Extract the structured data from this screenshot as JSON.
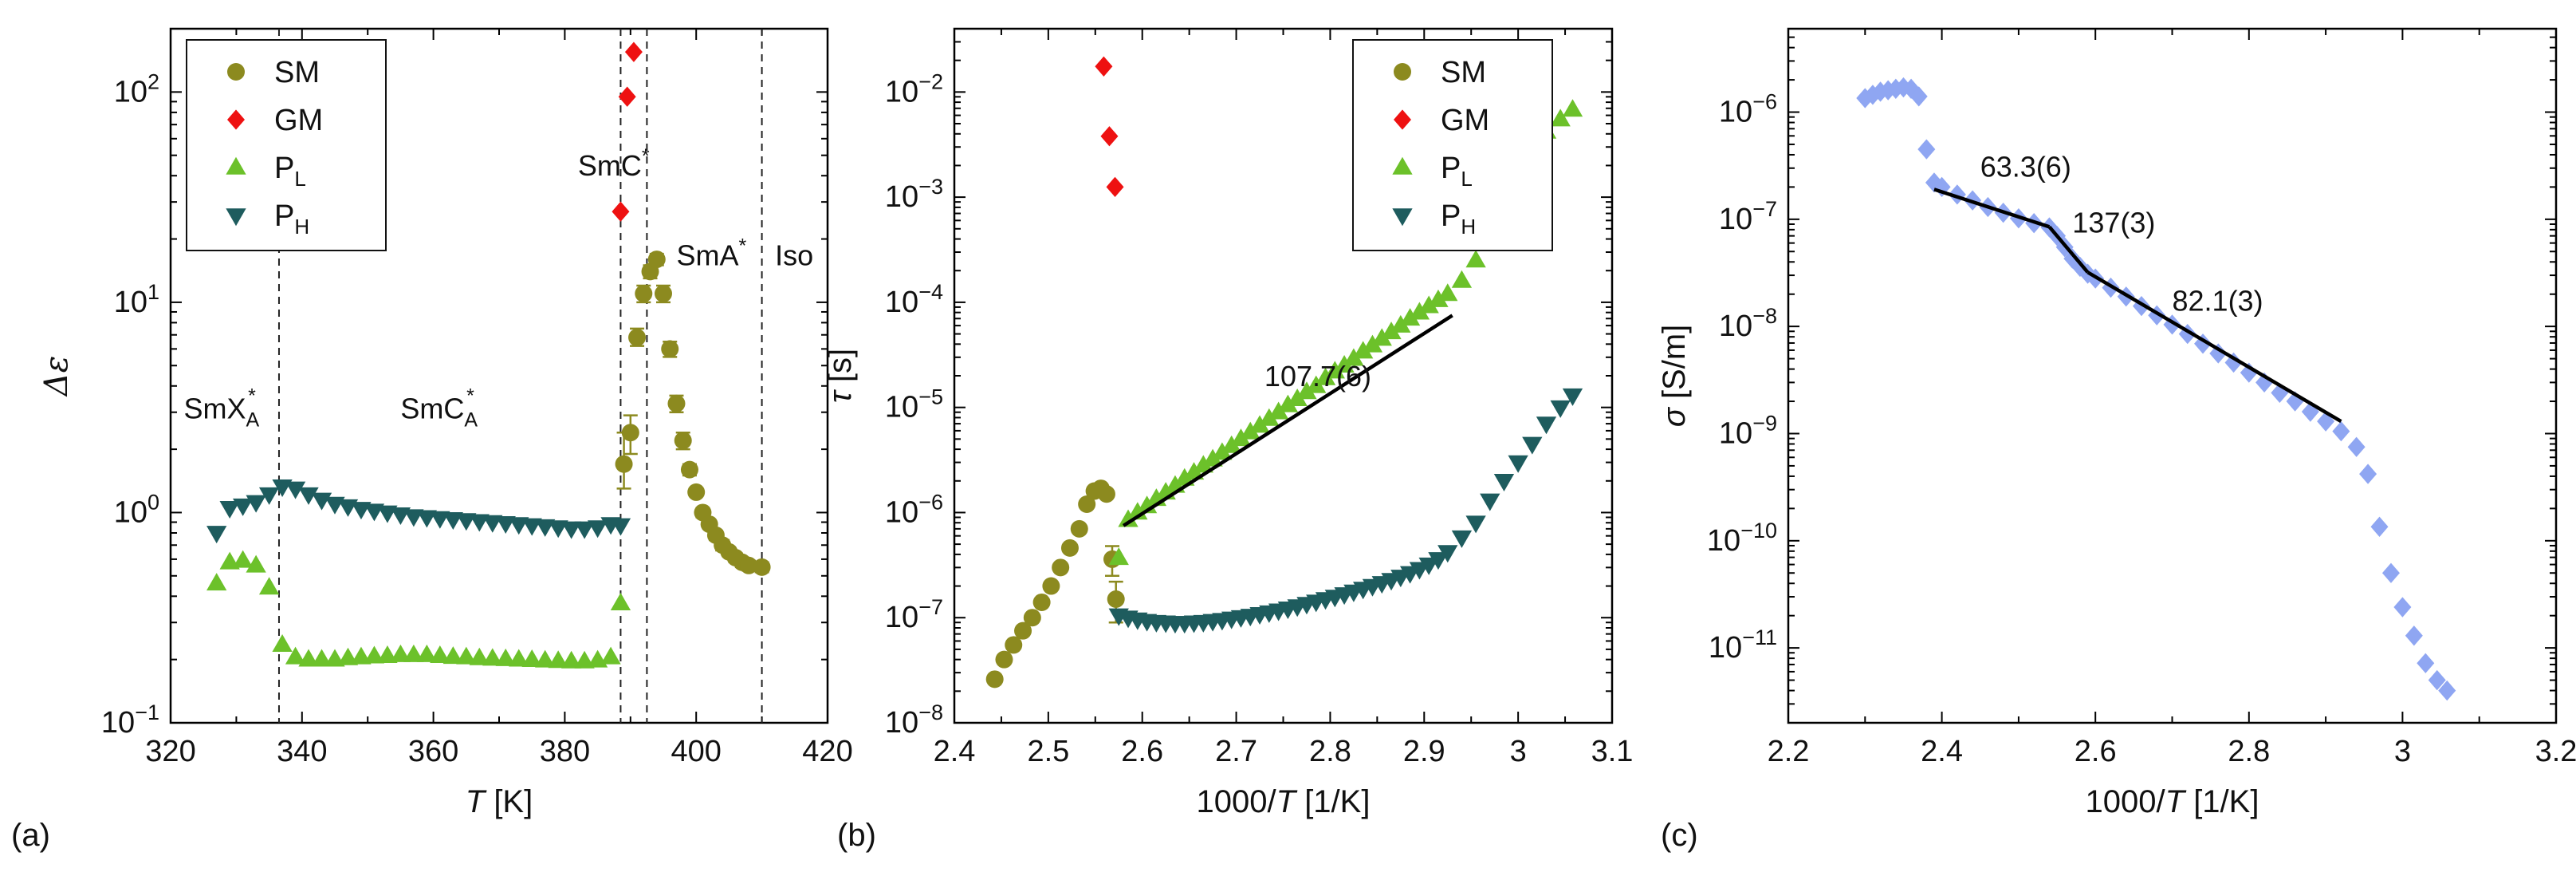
{
  "colors": {
    "SM": "#8c8a1f",
    "GM": "#ee1111",
    "PL": "#6cc12a",
    "PH": "#1e5c5e",
    "sigma": "#8fa6f2",
    "fit": "#000000"
  },
  "chart_data": [
    {
      "type": "scatter",
      "panel_label": "(a)",
      "xlabel_var": "T",
      "xlabel_unit": " [K]",
      "ylabel": "Δε",
      "xlim": [
        320,
        420
      ],
      "ylim": [
        0.1,
        200
      ],
      "yscale": "log",
      "xticks": [
        320,
        340,
        360,
        380,
        400,
        420
      ],
      "yticks": [
        {
          "v": 0.1,
          "base": "10",
          "exp": "−1"
        },
        {
          "v": 1,
          "base": "10",
          "exp": "0"
        },
        {
          "v": 10,
          "base": "10",
          "exp": "1"
        },
        {
          "v": 100,
          "base": "10",
          "exp": "2"
        }
      ],
      "legend": {
        "placement": "top-left",
        "entries": [
          {
            "key": "SM",
            "main": "SM",
            "sub": "",
            "marker": "circle"
          },
          {
            "key": "GM",
            "main": "GM",
            "sub": "",
            "marker": "diamond"
          },
          {
            "key": "PL",
            "main": "P",
            "sub": "L",
            "marker": "triangle-up"
          },
          {
            "key": "PH",
            "main": "P",
            "sub": "H",
            "marker": "triangle-down"
          }
        ]
      },
      "vlines": [
        336.5,
        388.5,
        392.5,
        410
      ],
      "annotations": [
        {
          "main": "SmX",
          "sub": "A",
          "sup": "*",
          "x": 322,
          "y": 2.8
        },
        {
          "main": "SmC",
          "sub": "A",
          "sup": "*",
          "x": 355,
          "y": 2.8
        },
        {
          "main": "SmC",
          "sub": "",
          "sup": "*",
          "x": 382,
          "y": 40
        },
        {
          "main": "SmA",
          "sub": "",
          "sup": "*",
          "x": 397,
          "y": 15
        },
        {
          "main": "Iso",
          "sub": "",
          "sup": "",
          "x": 412,
          "y": 15
        }
      ],
      "series": [
        {
          "key": "SM",
          "marker": "circle",
          "errorbars": true,
          "x": [
            389,
            390,
            391,
            392,
            393,
            394,
            395,
            396,
            397,
            398,
            399,
            400,
            401,
            402,
            403,
            404,
            405,
            406,
            407,
            408,
            410
          ],
          "y": [
            1.7,
            2.4,
            6.8,
            11,
            14,
            16,
            11,
            6,
            3.3,
            2.2,
            1.6,
            1.25,
            1.0,
            0.88,
            0.78,
            0.7,
            0.65,
            0.61,
            0.58,
            0.56,
            0.55
          ],
          "yerr_hi": [
            2.4,
            2.9,
            7.5,
            12,
            15,
            17,
            12,
            6.5,
            3.6,
            2.4,
            1.7,
            1.3,
            1.05,
            0.92,
            0.82,
            0.74,
            0.68,
            0.64,
            0.61,
            0.59,
            0.58
          ],
          "yerr_lo": [
            1.3,
            1.9,
            6.2,
            10,
            13,
            15,
            10,
            5.5,
            3.0,
            2.0,
            1.5,
            1.2,
            0.95,
            0.84,
            0.74,
            0.66,
            0.62,
            0.58,
            0.55,
            0.53,
            0.52
          ]
        },
        {
          "key": "GM",
          "marker": "diamond",
          "errorbars": false,
          "x": [
            388.5,
            389.5,
            390.5
          ],
          "y": [
            27,
            95,
            155
          ]
        },
        {
          "key": "PL",
          "marker": "triangle-up",
          "errorbars": false,
          "x": [
            327,
            329,
            331,
            333,
            335,
            337,
            339,
            341,
            343,
            345,
            347,
            349,
            351,
            353,
            355,
            357,
            359,
            361,
            363,
            365,
            367,
            369,
            371,
            373,
            375,
            377,
            379,
            381,
            383,
            385,
            387,
            388.5
          ],
          "y": [
            0.46,
            0.58,
            0.59,
            0.56,
            0.44,
            0.235,
            0.205,
            0.2,
            0.2,
            0.2,
            0.203,
            0.205,
            0.207,
            0.208,
            0.21,
            0.21,
            0.21,
            0.208,
            0.206,
            0.205,
            0.203,
            0.202,
            0.201,
            0.2,
            0.199,
            0.198,
            0.197,
            0.196,
            0.196,
            0.198,
            0.205,
            0.37
          ]
        },
        {
          "key": "PH",
          "marker": "triangle-down",
          "errorbars": false,
          "x": [
            327,
            329,
            331,
            333,
            335,
            337,
            339,
            341,
            343,
            345,
            347,
            349,
            351,
            353,
            355,
            357,
            359,
            361,
            363,
            365,
            367,
            369,
            371,
            373,
            375,
            377,
            379,
            381,
            383,
            385,
            387,
            388.5
          ],
          "y": [
            0.8,
            1.05,
            1.08,
            1.12,
            1.22,
            1.33,
            1.3,
            1.22,
            1.15,
            1.1,
            1.07,
            1.04,
            1.02,
            1.0,
            0.98,
            0.96,
            0.95,
            0.94,
            0.93,
            0.92,
            0.91,
            0.9,
            0.89,
            0.88,
            0.87,
            0.86,
            0.85,
            0.84,
            0.84,
            0.85,
            0.88,
            0.87
          ]
        }
      ]
    },
    {
      "type": "scatter",
      "panel_label": "(b)",
      "xlabel_pre": "1000/",
      "xlabel_var": "T",
      "xlabel_unit": " [1/K]",
      "ylabel_var": "τ",
      "ylabel_unit": " [s]",
      "xlim": [
        2.4,
        3.1
      ],
      "ylim": [
        1e-08,
        0.04
      ],
      "yscale": "log",
      "xticks": [
        2.4,
        2.5,
        2.6,
        2.7,
        2.8,
        2.9,
        3.0,
        3.1
      ],
      "xtick_labels": [
        "2.4",
        "2.5",
        "2.6",
        "2.7",
        "2.8",
        "2.9",
        "3",
        "3.1"
      ],
      "yticks": [
        {
          "v": 1e-08,
          "base": "10",
          "exp": "−8"
        },
        {
          "v": 1e-07,
          "base": "10",
          "exp": "−7"
        },
        {
          "v": 1e-06,
          "base": "10",
          "exp": "−6"
        },
        {
          "v": 1e-05,
          "base": "10",
          "exp": "−5"
        },
        {
          "v": 0.0001,
          "base": "10",
          "exp": "−4"
        },
        {
          "v": 0.001,
          "base": "10",
          "exp": "−3"
        },
        {
          "v": 0.01,
          "base": "10",
          "exp": "−2"
        }
      ],
      "legend": {
        "placement": "top-right",
        "entries": [
          {
            "key": "SM",
            "main": "SM",
            "sub": "",
            "marker": "circle"
          },
          {
            "key": "GM",
            "main": "GM",
            "sub": "",
            "marker": "diamond"
          },
          {
            "key": "PL",
            "main": "P",
            "sub": "L",
            "marker": "triangle-up"
          },
          {
            "key": "PH",
            "main": "P",
            "sub": "H",
            "marker": "triangle-down"
          }
        ]
      },
      "fit_lines": [
        {
          "x": [
            2.58,
            2.93
          ],
          "y": [
            7.5e-07,
            7.5e-05
          ]
        }
      ],
      "annotations": [
        {
          "main": "107.7(6)",
          "sub": "",
          "sup": "",
          "x": 2.73,
          "y": 1.6e-05
        }
      ],
      "series": [
        {
          "key": "SM",
          "marker": "circle",
          "errorbars": true,
          "x": [
            2.443,
            2.453,
            2.463,
            2.473,
            2.483,
            2.493,
            2.503,
            2.513,
            2.523,
            2.533,
            2.541,
            2.549,
            2.556,
            2.562,
            2.568,
            2.572
          ],
          "y": [
            2.6e-08,
            4e-08,
            5.5e-08,
            7.5e-08,
            1e-07,
            1.4e-07,
            2e-07,
            3e-07,
            4.6e-07,
            7e-07,
            1.2e-06,
            1.6e-06,
            1.7e-06,
            1.5e-06,
            3.6e-07,
            1.5e-07
          ],
          "yerr_hi": [
            null,
            null,
            null,
            null,
            null,
            null,
            null,
            null,
            null,
            null,
            null,
            null,
            null,
            null,
            4.8e-07,
            2.2e-07
          ],
          "yerr_lo": [
            null,
            null,
            null,
            null,
            null,
            null,
            null,
            null,
            null,
            null,
            null,
            null,
            null,
            null,
            2.5e-07,
            9e-08
          ]
        },
        {
          "key": "GM",
          "marker": "diamond",
          "errorbars": false,
          "x": [
            2.559,
            2.565,
            2.571
          ],
          "y": [
            0.0175,
            0.0038,
            0.00125
          ]
        },
        {
          "key": "PL",
          "marker": "triangle-up",
          "errorbars": false,
          "x": [
            2.575,
            2.585,
            2.595,
            2.605,
            2.615,
            2.625,
            2.635,
            2.645,
            2.655,
            2.665,
            2.675,
            2.685,
            2.695,
            2.705,
            2.715,
            2.725,
            2.735,
            2.745,
            2.755,
            2.765,
            2.775,
            2.785,
            2.795,
            2.805,
            2.815,
            2.825,
            2.835,
            2.845,
            2.855,
            2.865,
            2.875,
            2.885,
            2.895,
            2.905,
            2.915,
            2.925,
            2.94,
            2.955,
            2.97,
            2.985,
            3.0,
            3.015,
            3.03,
            3.045,
            3.058
          ],
          "y": [
            3.7e-07,
            8.5e-07,
            1e-06,
            1.15e-06,
            1.35e-06,
            1.55e-06,
            1.8e-06,
            2.1e-06,
            2.4e-06,
            2.8e-06,
            3.2e-06,
            3.7e-06,
            4.3e-06,
            5e-06,
            5.8e-06,
            6.7e-06,
            7.8e-06,
            9e-06,
            1.05e-05,
            1.2e-05,
            1.4e-05,
            1.6e-05,
            1.9e-05,
            2.2e-05,
            2.5e-05,
            2.9e-05,
            3.4e-05,
            3.9e-05,
            4.5e-05,
            5.2e-05,
            6e-05,
            7e-05,
            8e-05,
            9.2e-05,
            0.000105,
            0.00012,
            0.00016,
            0.00025,
            0.00055,
            0.00125,
            0.0021,
            0.003,
            0.0042,
            0.0055,
            0.0068
          ]
        },
        {
          "key": "PH",
          "marker": "triangle-down",
          "errorbars": false,
          "x": [
            2.575,
            2.585,
            2.595,
            2.605,
            2.615,
            2.625,
            2.635,
            2.645,
            2.655,
            2.665,
            2.675,
            2.685,
            2.695,
            2.705,
            2.715,
            2.725,
            2.735,
            2.745,
            2.755,
            2.765,
            2.775,
            2.785,
            2.795,
            2.805,
            2.815,
            2.825,
            2.835,
            2.845,
            2.855,
            2.865,
            2.875,
            2.885,
            2.895,
            2.905,
            2.915,
            2.925,
            2.94,
            2.955,
            2.97,
            2.985,
            3.0,
            3.015,
            3.03,
            3.045,
            3.058
          ],
          "y": [
            1.05e-07,
            1e-07,
            9.6e-08,
            9.3e-08,
            9.1e-08,
            9e-08,
            8.9e-08,
            8.9e-08,
            9e-08,
            9.1e-08,
            9.3e-08,
            9.5e-08,
            9.8e-08,
            1.01e-07,
            1.04e-07,
            1.08e-07,
            1.12e-07,
            1.17e-07,
            1.22e-07,
            1.28e-07,
            1.35e-07,
            1.42e-07,
            1.5e-07,
            1.58e-07,
            1.67e-07,
            1.77e-07,
            1.88e-07,
            2e-07,
            2.13e-07,
            2.28e-07,
            2.45e-07,
            2.65e-07,
            2.9e-07,
            3.2e-07,
            3.6e-07,
            4.2e-07,
            5.8e-07,
            8e-07,
            1.3e-06,
            2e-06,
            3e-06,
            4.5e-06,
            7e-06,
            1e-05,
            1.3e-05
          ]
        }
      ]
    },
    {
      "type": "scatter",
      "panel_label": "(c)",
      "xlabel_pre": "1000/",
      "xlabel_var": "T",
      "xlabel_unit": " [1/K]",
      "ylabel_var": "σ",
      "ylabel_unit": " [S/m]",
      "xlim": [
        2.2,
        3.2
      ],
      "ylim": [
        2e-12,
        6e-06
      ],
      "yscale": "log",
      "xticks": [
        2.2,
        2.4,
        2.6,
        2.8,
        3.0,
        3.2
      ],
      "xtick_labels": [
        "2.2",
        "2.4",
        "2.6",
        "2.8",
        "3",
        "3.2"
      ],
      "yticks": [
        {
          "v": 1e-11,
          "base": "10",
          "exp": "−11"
        },
        {
          "v": 1e-10,
          "base": "10",
          "exp": "−10"
        },
        {
          "v": 1e-09,
          "base": "10",
          "exp": "−9"
        },
        {
          "v": 1e-08,
          "base": "10",
          "exp": "−8"
        },
        {
          "v": 1e-07,
          "base": "10",
          "exp": "−7"
        },
        {
          "v": 1e-06,
          "base": "10",
          "exp": "−6"
        }
      ],
      "fit_lines": [
        {
          "x": [
            2.39,
            2.54
          ],
          "y": [
            1.9e-07,
            8.5e-08
          ]
        },
        {
          "x": [
            2.54,
            2.59
          ],
          "y": [
            8.5e-08,
            3.2e-08
          ]
        },
        {
          "x": [
            2.59,
            2.92
          ],
          "y": [
            3.2e-08,
            1.3e-09
          ]
        }
      ],
      "annotations": [
        {
          "main": "63.3(6)",
          "sub": "",
          "sup": "",
          "x": 2.45,
          "y": 2.5e-07
        },
        {
          "main": "137(3)",
          "sub": "",
          "sup": "",
          "x": 2.57,
          "y": 7.5e-08
        },
        {
          "main": "82.1(3)",
          "sub": "",
          "sup": "",
          "x": 2.7,
          "y": 1.4e-08
        }
      ],
      "series": [
        {
          "key": "sigma",
          "marker": "diamond",
          "errorbars": false,
          "x": [
            2.3,
            2.31,
            2.32,
            2.33,
            2.34,
            2.35,
            2.36,
            2.37,
            2.38,
            2.39,
            2.4,
            2.42,
            2.44,
            2.46,
            2.48,
            2.5,
            2.52,
            2.54,
            2.55,
            2.56,
            2.57,
            2.58,
            2.59,
            2.6,
            2.62,
            2.64,
            2.66,
            2.68,
            2.7,
            2.72,
            2.74,
            2.76,
            2.78,
            2.8,
            2.82,
            2.84,
            2.86,
            2.88,
            2.9,
            2.92,
            2.94,
            2.955,
            2.97,
            2.985,
            3.0,
            3.015,
            3.03,
            3.045,
            3.058
          ],
          "y": [
            1.35e-06,
            1.45e-06,
            1.55e-06,
            1.6e-06,
            1.65e-06,
            1.7e-06,
            1.65e-06,
            1.4e-06,
            4.5e-07,
            2.2e-07,
            2e-07,
            1.7e-07,
            1.5e-07,
            1.3e-07,
            1.15e-07,
            1.02e-07,
            9.2e-08,
            8.4e-08,
            7e-08,
            5.5e-08,
            4.3e-08,
            3.6e-08,
            3.1e-08,
            2.8e-08,
            2.3e-08,
            1.9e-08,
            1.55e-08,
            1.27e-08,
            1.04e-08,
            8.5e-09,
            6.9e-09,
            5.6e-09,
            4.6e-09,
            3.7e-09,
            3e-09,
            2.4e-09,
            2e-09,
            1.6e-09,
            1.3e-09,
            1.05e-09,
            7.5e-10,
            4.2e-10,
            1.35e-10,
            5e-11,
            2.4e-11,
            1.3e-11,
            7.2e-12,
            5e-12,
            4e-12
          ]
        }
      ]
    }
  ]
}
